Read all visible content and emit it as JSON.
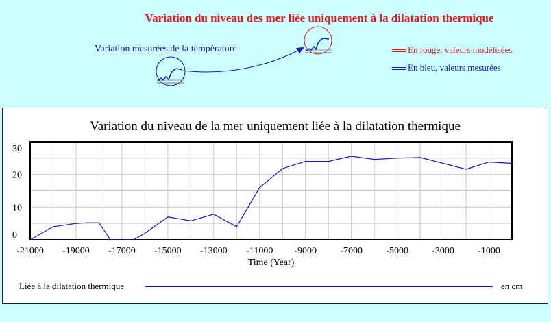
{
  "header": {
    "title": "Variation du niveau des mer liée uniquement à la dilatation thermique",
    "measured_label": "Variation mesurées de la température",
    "note_red": "En rouge, valeurs modélisées",
    "note_blue": "En bleu, valeurs mesurées"
  },
  "colors": {
    "background": "#ccffff",
    "title_red": "#e8151a",
    "series_blue": "#1515c8",
    "grid": "#c8c8c8"
  },
  "legend": {
    "series_label": "Liée à la dilatation thermique",
    "unit": "en cm"
  },
  "chart_data": {
    "type": "line",
    "title": "Variation du niveau de la mer uniquement liée à la dilatation thermique",
    "xlabel": "Time (Year)",
    "ylabel": "",
    "xlim": [
      -21000,
      0
    ],
    "ylim": [
      0,
      30
    ],
    "x_ticks": [
      "-21000",
      "-19000",
      "-17000",
      "-15000",
      "-13000",
      "-11000",
      "-9000",
      "-7000",
      "-5000",
      "-3000",
      "-1000"
    ],
    "y_ticks": [
      "30",
      "20",
      "10",
      "0"
    ],
    "grid": true,
    "series": [
      {
        "name": "Liée à la dilatation thermique",
        "x": [
          -21000,
          -20000,
          -19000,
          -18500,
          -18000,
          -17500,
          -17000,
          -16500,
          -16000,
          -15000,
          -14000,
          -13000,
          -12000,
          -11000,
          -10000,
          -9000,
          -8000,
          -7000,
          -6000,
          -5000,
          -4000,
          -3000,
          -2000,
          -1000,
          0
        ],
        "y": [
          0,
          4,
          5,
          5.2,
          5.2,
          0,
          0,
          0,
          2,
          7,
          5.8,
          7.8,
          4,
          16,
          21.8,
          24,
          24,
          25.6,
          24.6,
          25,
          25.2,
          23.4,
          21.6,
          23.8,
          23.4
        ]
      }
    ]
  }
}
